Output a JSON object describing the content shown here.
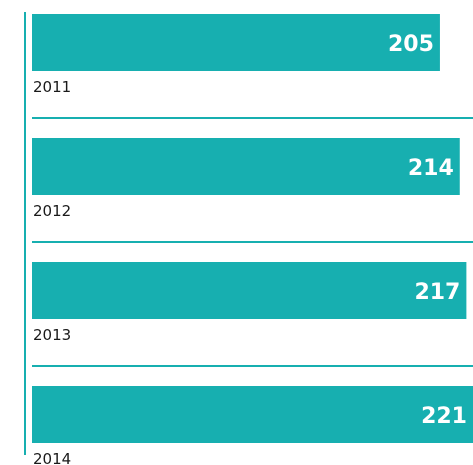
{
  "chart_data": {
    "type": "bar",
    "orientation": "horizontal",
    "categories": [
      "2011",
      "2012",
      "2013",
      "2014"
    ],
    "values": [
      205,
      214,
      217,
      221
    ],
    "color": "#17afb0",
    "xlim": [
      20,
      220
    ]
  }
}
